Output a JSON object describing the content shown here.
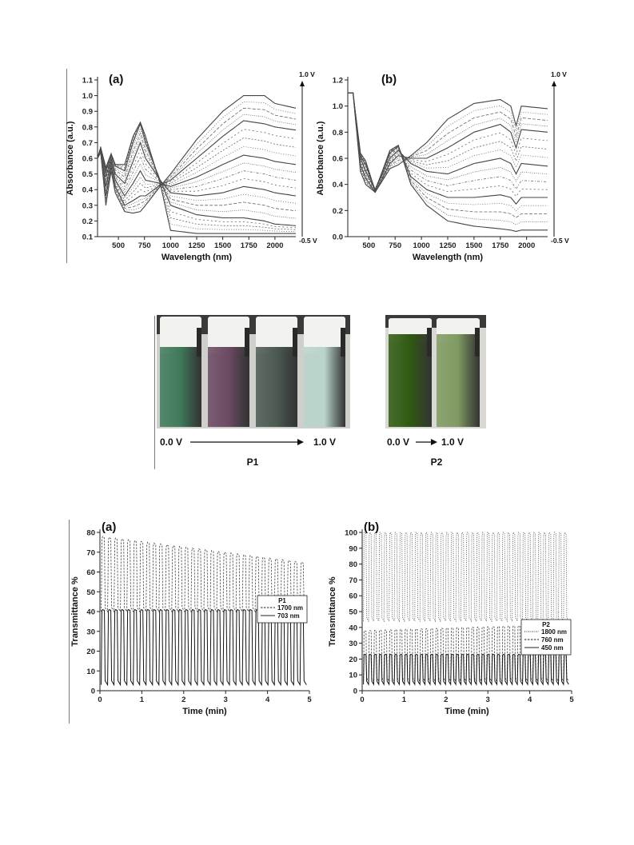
{
  "figures": {
    "absorbance": {
      "panel_a_label": "(a)",
      "panel_b_label": "(b)",
      "top_voltage": "1.0 V",
      "bottom_voltage": "-0.5 V"
    },
    "photo": {
      "p1_start": "0.0 V",
      "p1_end": "1.0 V",
      "p1_label": "P1",
      "p2_start": "0.0 V",
      "p2_end": "1.0 V",
      "p2_label": "P2",
      "vial_colors": [
        "#3f7a5a",
        "#6b4a62",
        "#4c5a52",
        "#b9d4cb",
        "#2f5a12",
        "#7f9a62"
      ]
    },
    "transmittance": {
      "panel_a_label": "(a)",
      "panel_b_label": "(b)"
    }
  },
  "chart_data": [
    {
      "type": "line",
      "panel": "(a)",
      "xlabel": "Wavelength (nm)",
      "ylabel": "Absorbance (a.u.)",
      "xlim": [
        300,
        2200
      ],
      "ylim": [
        0.1,
        1.1
      ],
      "xticks": [
        500,
        750,
        1000,
        1250,
        1500,
        1750,
        2000
      ],
      "yticks": [
        0.1,
        0.2,
        0.3,
        0.4,
        0.5,
        0.6,
        0.7,
        0.8,
        0.9,
        1.0,
        1.1
      ],
      "annotations": [
        "1.0 V",
        "-0.5 V"
      ],
      "series": [
        {
          "x": [
            300,
            330,
            380,
            430,
            470,
            560,
            640,
            710,
            760,
            900,
            1000,
            1250,
            1500,
            1700,
            1900,
            2000,
            2200
          ],
          "y": [
            0.6,
            0.64,
            0.3,
            0.52,
            0.38,
            0.26,
            0.25,
            0.26,
            0.3,
            0.42,
            0.5,
            0.72,
            0.9,
            1.0,
            1.0,
            0.95,
            0.92
          ]
        },
        {
          "x": [
            300,
            330,
            380,
            430,
            470,
            560,
            640,
            710,
            760,
            900,
            1000,
            1250,
            1500,
            1700,
            1900,
            2000,
            2200
          ],
          "y": [
            0.6,
            0.64,
            0.36,
            0.55,
            0.42,
            0.3,
            0.33,
            0.36,
            0.36,
            0.43,
            0.46,
            0.6,
            0.74,
            0.84,
            0.82,
            0.8,
            0.78
          ]
        },
        {
          "x": [
            300,
            330,
            380,
            430,
            470,
            560,
            640,
            710,
            760,
            900,
            1000,
            1250,
            1500,
            1700,
            1900,
            2000,
            2200
          ],
          "y": [
            0.6,
            0.65,
            0.42,
            0.58,
            0.46,
            0.36,
            0.44,
            0.52,
            0.46,
            0.44,
            0.42,
            0.48,
            0.56,
            0.62,
            0.6,
            0.58,
            0.56
          ]
        },
        {
          "x": [
            300,
            330,
            380,
            430,
            470,
            560,
            640,
            710,
            760,
            900,
            1000,
            1250,
            1500,
            1700,
            1900,
            2000,
            2200
          ],
          "y": [
            0.6,
            0.66,
            0.48,
            0.6,
            0.5,
            0.44,
            0.58,
            0.7,
            0.6,
            0.46,
            0.38,
            0.36,
            0.38,
            0.42,
            0.4,
            0.38,
            0.36
          ]
        },
        {
          "x": [
            300,
            330,
            380,
            430,
            470,
            560,
            640,
            710,
            760,
            900,
            1000,
            1250,
            1500,
            1700,
            1900,
            2000,
            2200
          ],
          "y": [
            0.6,
            0.67,
            0.52,
            0.62,
            0.55,
            0.52,
            0.7,
            0.82,
            0.7,
            0.46,
            0.3,
            0.24,
            0.22,
            0.22,
            0.2,
            0.18,
            0.17
          ]
        },
        {
          "x": [
            300,
            330,
            380,
            430,
            470,
            560,
            640,
            710,
            760,
            900,
            1000,
            1250,
            1500,
            1700,
            1900,
            2000,
            2200
          ],
          "y": [
            0.6,
            0.67,
            0.54,
            0.63,
            0.56,
            0.56,
            0.74,
            0.83,
            0.74,
            0.44,
            0.14,
            0.12,
            0.12,
            0.12,
            0.12,
            0.12,
            0.12
          ]
        }
      ]
    },
    {
      "type": "line",
      "panel": "(b)",
      "xlabel": "Wavelength (nm)",
      "ylabel": "Absorbance (a.u.)",
      "xlim": [
        300,
        2200
      ],
      "ylim": [
        0.0,
        1.2
      ],
      "xticks": [
        500,
        750,
        1000,
        1250,
        1500,
        1750,
        2000
      ],
      "yticks": [
        0.0,
        0.2,
        0.4,
        0.6,
        0.8,
        1.0,
        1.2
      ],
      "annotations": [
        "1.0 V",
        "-0.5 V"
      ],
      "series": [
        {
          "x": [
            300,
            350,
            420,
            470,
            560,
            700,
            780,
            900,
            1050,
            1250,
            1500,
            1750,
            1850,
            1900,
            1950,
            2200
          ],
          "y": [
            1.1,
            1.1,
            0.5,
            0.4,
            0.34,
            0.52,
            0.55,
            0.62,
            0.72,
            0.9,
            1.02,
            1.05,
            1.0,
            0.85,
            1.0,
            0.98
          ]
        },
        {
          "x": [
            300,
            350,
            420,
            470,
            560,
            700,
            780,
            900,
            1050,
            1250,
            1500,
            1750,
            1850,
            1900,
            1950,
            2200
          ],
          "y": [
            1.1,
            1.1,
            0.55,
            0.45,
            0.34,
            0.56,
            0.62,
            0.6,
            0.6,
            0.68,
            0.8,
            0.86,
            0.8,
            0.68,
            0.82,
            0.8
          ]
        },
        {
          "x": [
            300,
            350,
            420,
            470,
            560,
            700,
            780,
            900,
            1050,
            1250,
            1500,
            1750,
            1850,
            1900,
            1950,
            2200
          ],
          "y": [
            1.1,
            1.1,
            0.6,
            0.5,
            0.36,
            0.6,
            0.66,
            0.56,
            0.5,
            0.48,
            0.56,
            0.6,
            0.56,
            0.48,
            0.56,
            0.54
          ]
        },
        {
          "x": [
            300,
            350,
            420,
            470,
            560,
            700,
            780,
            900,
            1050,
            1250,
            1500,
            1750,
            1850,
            1900,
            1950,
            2200
          ],
          "y": [
            1.1,
            1.1,
            0.62,
            0.55,
            0.36,
            0.64,
            0.69,
            0.46,
            0.36,
            0.3,
            0.3,
            0.32,
            0.3,
            0.25,
            0.3,
            0.3
          ]
        },
        {
          "x": [
            300,
            350,
            420,
            470,
            560,
            700,
            780,
            900,
            1050,
            1250,
            1500,
            1750,
            1850,
            1900,
            1950,
            2200
          ],
          "y": [
            1.1,
            1.1,
            0.64,
            0.58,
            0.35,
            0.66,
            0.7,
            0.4,
            0.24,
            0.12,
            0.08,
            0.06,
            0.05,
            0.04,
            0.05,
            0.05
          ]
        }
      ]
    },
    {
      "type": "line",
      "panel": "(a)",
      "xlabel": "Time (min)",
      "ylabel": "Transmittance %",
      "xlim": [
        0,
        5
      ],
      "ylim": [
        0,
        80
      ],
      "xticks": [
        0,
        1,
        2,
        3,
        4,
        5
      ],
      "yticks": [
        0,
        10,
        20,
        30,
        40,
        50,
        60,
        70,
        80
      ],
      "legend": {
        "title": "P1",
        "position": "right",
        "entries": [
          "1700 nm",
          "703 nm"
        ]
      },
      "series": [
        {
          "name": "1700 nm",
          "style": "dashed",
          "cycles": 32,
          "high_start": 78,
          "high_end": 65,
          "low": 40
        },
        {
          "name": "703 nm",
          "style": "solid",
          "cycles": 32,
          "high": 41,
          "low": 3
        }
      ]
    },
    {
      "type": "line",
      "panel": "(b)",
      "xlabel": "Time (min)",
      "ylabel": "Transmittance %",
      "xlim": [
        0,
        5
      ],
      "ylim": [
        0,
        100
      ],
      "xticks": [
        0,
        1,
        2,
        3,
        4,
        5
      ],
      "yticks": [
        0,
        10,
        20,
        30,
        40,
        50,
        60,
        70,
        80,
        90,
        100
      ],
      "legend": {
        "title": "P2",
        "position": "right",
        "entries": [
          "1800 nm",
          "760 nm",
          "450 nm"
        ]
      },
      "series": [
        {
          "name": "1800 nm",
          "style": "dotted",
          "cycles": 40,
          "high": 100,
          "low": 44
        },
        {
          "name": "760 nm",
          "style": "dashed",
          "cycles": 40,
          "high_start": 38,
          "high_end": 42,
          "low": 6
        },
        {
          "name": "450 nm",
          "style": "solid",
          "cycles": 40,
          "high": 23,
          "low": 4
        }
      ]
    }
  ]
}
